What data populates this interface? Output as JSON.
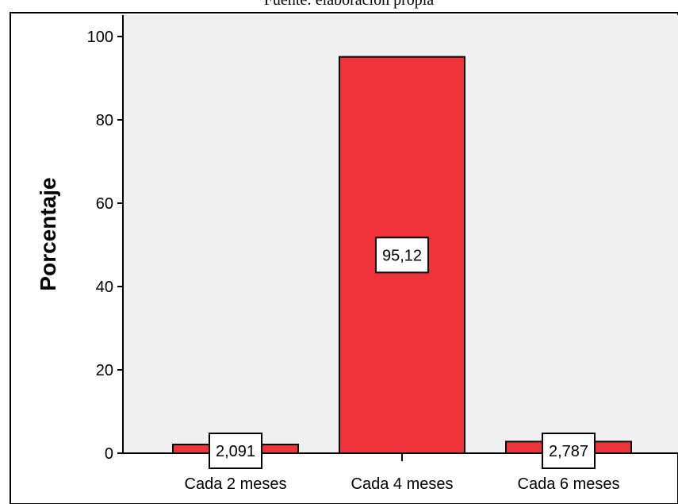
{
  "header": {
    "source_note": "Fuente: elaboración propia"
  },
  "chart_data": {
    "type": "bar",
    "categories": [
      "Cada 2 meses",
      "Cada 4 meses",
      "Cada 6 meses"
    ],
    "values": [
      2.091,
      95.12,
      2.787
    ],
    "data_labels": [
      "2,091",
      "95,12",
      "2,787"
    ],
    "title": "",
    "xlabel": "",
    "ylabel": "Porcentaje",
    "ylim": [
      0,
      100
    ],
    "yticks": [
      0,
      20,
      40,
      60,
      80,
      100
    ],
    "grid": false,
    "legend": "none",
    "bar_color": "#f0323a",
    "plot_background": "#f0f0f0"
  }
}
